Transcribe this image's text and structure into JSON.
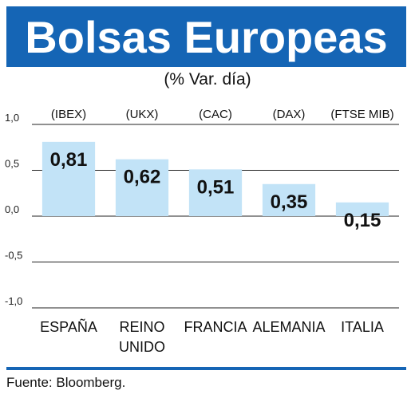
{
  "header": {
    "title": "Bolsas Europeas",
    "subtitle": "(% Var. día)"
  },
  "source": "Fuente: Bloomberg.",
  "colors": {
    "header_bg": "#1565b5",
    "bar": "#c2e3f7",
    "rule": "#1565b5"
  },
  "chart_data": {
    "type": "bar",
    "title": "Bolsas Europeas",
    "subtitle": "(% Var. día)",
    "categories": [
      "ESPAÑA",
      "REINO UNIDO",
      "FRANCIA",
      "ALEMANIA",
      "ITALIA"
    ],
    "category_lines": [
      [
        "ESPAÑA"
      ],
      [
        "REINO",
        "UNIDO"
      ],
      [
        "FRANCIA"
      ],
      [
        "ALEMANIA"
      ],
      [
        "ITALIA"
      ]
    ],
    "codes": [
      "(IBEX)",
      "(UKX)",
      "(CAC)",
      "(DAX)",
      "(FTSE MIB)"
    ],
    "values": [
      0.81,
      0.62,
      0.51,
      0.35,
      0.15
    ],
    "value_labels": [
      "0,81",
      "0,62",
      "0,51",
      "0,35",
      "0,15"
    ],
    "yticks": [
      1.0,
      0.5,
      0.0,
      -0.5,
      -1.0
    ],
    "ytick_labels": [
      "1,0",
      "0,5",
      "0,0",
      "-0,5",
      "-1,0"
    ],
    "ylim": [
      -1.0,
      1.0
    ],
    "grid": true,
    "xlabel": "",
    "ylabel": ""
  }
}
